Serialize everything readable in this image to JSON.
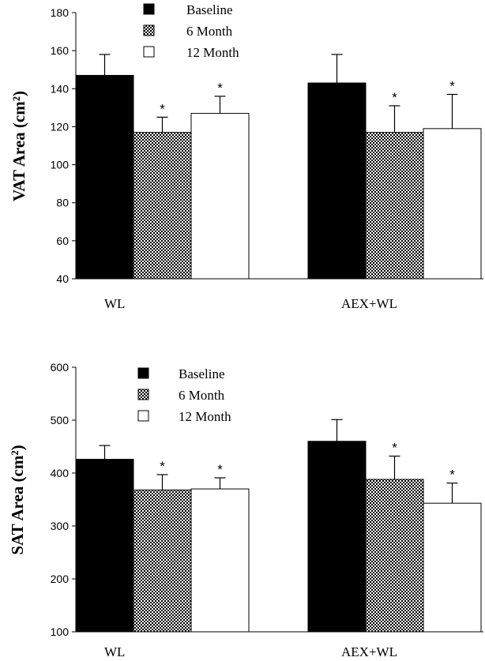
{
  "chart_data": [
    {
      "type": "bar",
      "ylabel": "VAT Area (cm²)",
      "ylim": [
        40,
        180
      ],
      "yticks": [
        40,
        60,
        80,
        100,
        120,
        140,
        160,
        180
      ],
      "categories": [
        "WL",
        "AEX+WL"
      ],
      "legend_position": "top-left",
      "series": [
        {
          "name": "Baseline",
          "fill": "solid-black",
          "values": [
            147,
            143
          ],
          "errors": [
            11,
            15
          ],
          "marks": [
            "",
            ""
          ]
        },
        {
          "name": "6 Month",
          "fill": "checkered-gray",
          "values": [
            117,
            117
          ],
          "errors": [
            8,
            14
          ],
          "marks": [
            "*",
            "*"
          ]
        },
        {
          "name": "12 Month",
          "fill": "white",
          "values": [
            127,
            119
          ],
          "errors": [
            9,
            18
          ],
          "marks": [
            "*",
            "*"
          ]
        }
      ]
    },
    {
      "type": "bar",
      "ylabel": "SAT Area (cm²)",
      "ylim": [
        100,
        600
      ],
      "yticks": [
        100,
        200,
        300,
        400,
        500,
        600
      ],
      "categories": [
        "WL",
        "AEX+WL"
      ],
      "legend_position": "top-left",
      "series": [
        {
          "name": "Baseline",
          "fill": "solid-black",
          "values": [
            426,
            460
          ],
          "errors": [
            26,
            41
          ],
          "marks": [
            "",
            ""
          ]
        },
        {
          "name": "6 Month",
          "fill": "checkered-gray",
          "values": [
            368,
            388
          ],
          "errors": [
            29,
            44
          ],
          "marks": [
            "*",
            "*"
          ]
        },
        {
          "name": "12 Month",
          "fill": "white",
          "values": [
            370,
            343
          ],
          "errors": [
            21,
            38
          ],
          "marks": [
            "*",
            "*"
          ]
        }
      ]
    }
  ]
}
